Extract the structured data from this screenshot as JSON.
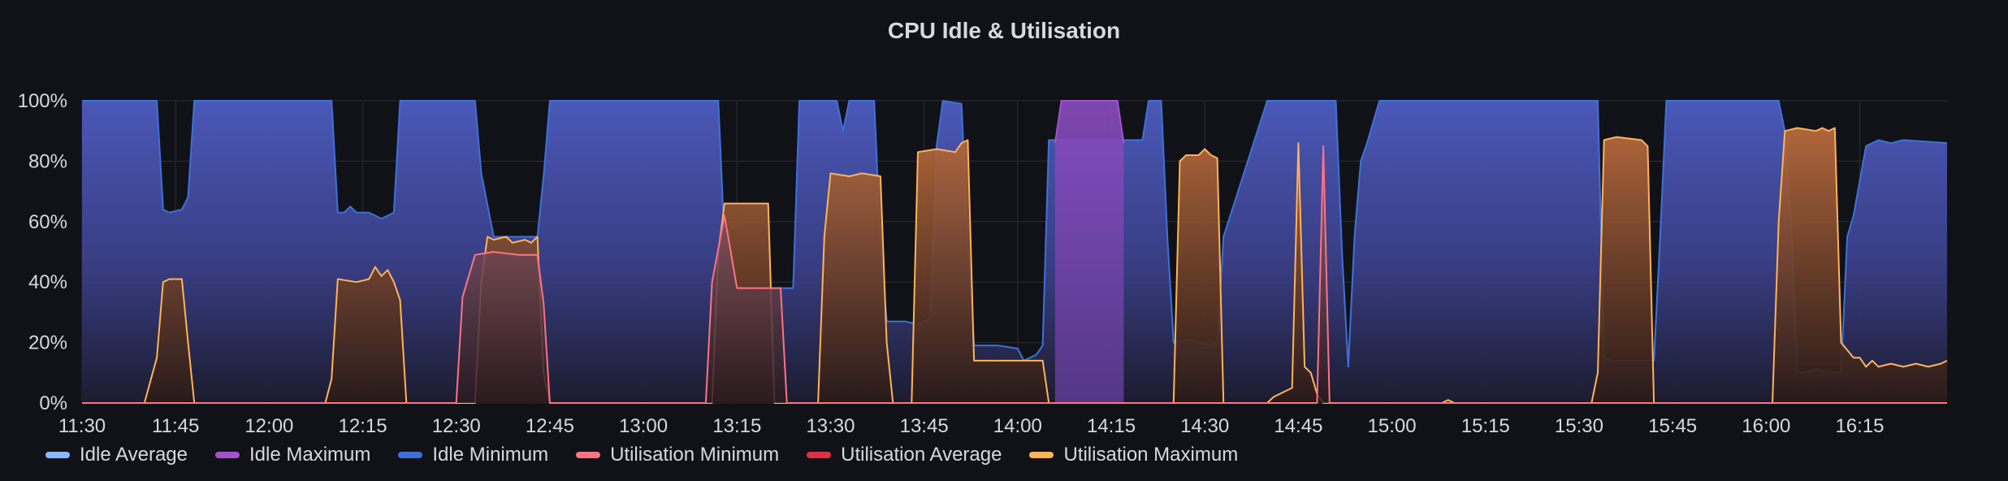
{
  "title": "CPU Idle & Utilisation",
  "chart_data": {
    "type": "area",
    "title": "CPU Idle & Utilisation",
    "ylim": [
      0,
      100
    ],
    "xlim_minutes": [
      690,
      989
    ],
    "y_ticks": [
      "0%",
      "20%",
      "40%",
      "60%",
      "80%",
      "100%"
    ],
    "y_tick_values": [
      0,
      20,
      40,
      60,
      80,
      100
    ],
    "x_ticks": [
      "11:30",
      "11:45",
      "12:00",
      "12:15",
      "12:30",
      "12:45",
      "13:00",
      "13:15",
      "13:30",
      "13:45",
      "14:00",
      "14:15",
      "14:30",
      "14:45",
      "15:00",
      "15:15",
      "15:30",
      "15:45",
      "16:00",
      "16:15"
    ],
    "x_tick_minutes": [
      690,
      705,
      720,
      735,
      750,
      765,
      780,
      795,
      810,
      825,
      840,
      855,
      870,
      885,
      900,
      915,
      930,
      945,
      960,
      975
    ],
    "grid": true,
    "legend_position": "bottom-left",
    "series": [
      {
        "name": "Idle Average",
        "color": "#8ab8ff",
        "points": []
      },
      {
        "name": "Idle Maximum",
        "color": "#a352cc",
        "points": [
          [
            846,
            86
          ],
          [
            847,
            100
          ],
          [
            856,
            100
          ],
          [
            857,
            86
          ]
        ]
      },
      {
        "name": "Idle Minimum",
        "color": "#3d71d9",
        "points": [
          [
            690,
            100
          ],
          [
            702,
            100
          ],
          [
            703,
            64
          ],
          [
            704,
            63
          ],
          [
            706,
            64
          ],
          [
            707,
            68
          ],
          [
            708,
            100
          ],
          [
            710,
            100
          ],
          [
            723,
            100
          ],
          [
            730,
            100
          ],
          [
            731,
            63
          ],
          [
            732,
            63
          ],
          [
            733,
            65
          ],
          [
            734,
            63
          ],
          [
            736,
            63
          ],
          [
            737,
            62
          ],
          [
            738,
            61
          ],
          [
            740,
            63
          ],
          [
            741,
            100
          ],
          [
            753,
            100
          ],
          [
            754,
            76
          ],
          [
            756,
            55
          ],
          [
            763,
            55
          ],
          [
            764,
            75
          ],
          [
            765,
            100
          ],
          [
            783,
            100
          ],
          [
            792,
            100
          ],
          [
            793,
            53
          ],
          [
            794,
            40
          ],
          [
            796,
            38
          ],
          [
            800,
            38
          ],
          [
            801,
            38
          ],
          [
            804,
            38
          ],
          [
            805,
            100
          ],
          [
            811,
            100
          ],
          [
            812,
            90
          ],
          [
            813,
            100
          ],
          [
            817,
            100
          ],
          [
            818,
            53
          ],
          [
            819,
            27
          ],
          [
            822,
            27
          ],
          [
            824,
            26
          ],
          [
            826,
            28
          ],
          [
            827,
            85
          ],
          [
            828,
            100
          ],
          [
            831,
            99
          ],
          [
            832,
            53
          ],
          [
            833,
            19
          ],
          [
            837,
            19
          ],
          [
            840,
            18
          ],
          [
            841,
            14
          ],
          [
            843,
            16
          ],
          [
            844,
            19
          ],
          [
            845,
            87
          ],
          [
            860,
            87
          ],
          [
            861,
            100
          ],
          [
            863,
            100
          ],
          [
            864,
            55
          ],
          [
            865,
            20
          ],
          [
            867,
            21
          ],
          [
            869,
            20
          ],
          [
            871,
            19
          ],
          [
            872,
            20
          ],
          [
            873,
            55
          ],
          [
            880,
            100
          ],
          [
            891,
            100
          ],
          [
            892,
            50
          ],
          [
            893,
            12
          ],
          [
            894,
            55
          ],
          [
            895,
            80
          ],
          [
            896,
            86
          ],
          [
            898,
            100
          ],
          [
            918,
            100
          ],
          [
            933,
            100
          ],
          [
            934,
            15
          ],
          [
            935,
            14
          ],
          [
            942,
            14
          ],
          [
            943,
            55
          ],
          [
            944,
            100
          ],
          [
            962,
            100
          ],
          [
            963,
            90
          ],
          [
            964,
            60
          ],
          [
            965,
            10
          ],
          [
            966,
            10
          ],
          [
            968,
            11
          ],
          [
            971,
            10
          ],
          [
            972,
            10
          ],
          [
            973,
            55
          ],
          [
            974,
            62
          ],
          [
            976,
            85
          ],
          [
            978,
            87
          ],
          [
            980,
            86
          ],
          [
            982,
            87
          ],
          [
            989,
            86
          ]
        ]
      },
      {
        "name": "Utilisation Minimum",
        "color": "#ff7383",
        "points": [
          [
            690,
            0
          ],
          [
            750,
            0
          ],
          [
            751,
            35
          ],
          [
            753,
            49
          ],
          [
            756,
            50
          ],
          [
            760,
            49
          ],
          [
            763,
            49
          ],
          [
            764,
            33
          ],
          [
            765,
            0
          ],
          [
            790,
            0
          ],
          [
            791,
            40
          ],
          [
            793,
            62
          ],
          [
            795,
            38
          ],
          [
            802,
            38
          ],
          [
            803,
            0
          ],
          [
            888,
            0
          ],
          [
            889,
            85
          ],
          [
            890,
            0
          ],
          [
            989,
            0
          ]
        ]
      },
      {
        "name": "Utilisation Average",
        "color": "#e02f44",
        "points": []
      },
      {
        "name": "Utilisation Maximum",
        "color": "#ffb357",
        "points": [
          [
            690,
            0
          ],
          [
            700,
            0
          ],
          [
            702,
            15
          ],
          [
            703,
            40
          ],
          [
            704,
            41
          ],
          [
            706,
            41
          ],
          [
            707,
            20
          ],
          [
            708,
            0
          ],
          [
            716,
            0
          ],
          [
            729,
            0
          ],
          [
            730,
            8
          ],
          [
            731,
            41
          ],
          [
            734,
            40
          ],
          [
            736,
            41
          ],
          [
            737,
            45
          ],
          [
            738,
            42
          ],
          [
            739,
            44
          ],
          [
            740,
            40
          ],
          [
            741,
            34
          ],
          [
            742,
            0
          ],
          [
            753,
            0
          ],
          [
            754,
            40
          ],
          [
            755,
            55
          ],
          [
            756,
            54
          ],
          [
            758,
            55
          ],
          [
            759,
            53
          ],
          [
            761,
            54
          ],
          [
            762,
            53
          ],
          [
            763,
            55
          ],
          [
            764,
            10
          ],
          [
            765,
            0
          ],
          [
            791,
            0
          ],
          [
            792,
            50
          ],
          [
            793,
            66
          ],
          [
            795,
            66
          ],
          [
            798,
            66
          ],
          [
            800,
            66
          ],
          [
            801,
            0
          ],
          [
            804,
            0
          ],
          [
            808,
            0
          ],
          [
            809,
            55
          ],
          [
            810,
            76
          ],
          [
            813,
            75
          ],
          [
            815,
            76
          ],
          [
            818,
            75
          ],
          [
            819,
            20
          ],
          [
            820,
            0
          ],
          [
            822,
            0
          ],
          [
            823,
            0
          ],
          [
            824,
            83
          ],
          [
            827,
            84
          ],
          [
            830,
            83
          ],
          [
            831,
            86
          ],
          [
            832,
            87
          ],
          [
            833,
            14
          ],
          [
            844,
            14
          ],
          [
            845,
            0
          ],
          [
            865,
            0
          ],
          [
            866,
            80
          ],
          [
            867,
            82
          ],
          [
            869,
            82
          ],
          [
            870,
            84
          ],
          [
            871,
            82
          ],
          [
            872,
            81
          ],
          [
            873,
            0
          ],
          [
            880,
            0
          ],
          [
            881,
            2
          ],
          [
            884,
            5
          ],
          [
            885,
            86
          ],
          [
            886,
            12
          ],
          [
            887,
            10
          ],
          [
            888,
            3
          ],
          [
            889,
            0
          ],
          [
            908,
            0
          ],
          [
            909,
            1
          ],
          [
            910,
            0
          ],
          [
            932,
            0
          ],
          [
            933,
            10
          ],
          [
            934,
            87
          ],
          [
            936,
            88
          ],
          [
            940,
            87
          ],
          [
            941,
            85
          ],
          [
            942,
            0
          ],
          [
            956,
            0
          ],
          [
            961,
            0
          ],
          [
            962,
            60
          ],
          [
            963,
            90
          ],
          [
            965,
            91
          ],
          [
            968,
            90
          ],
          [
            969,
            91
          ],
          [
            970,
            90
          ],
          [
            971,
            91
          ],
          [
            972,
            20
          ],
          [
            974,
            15
          ],
          [
            975,
            15
          ],
          [
            976,
            12
          ],
          [
            977,
            14
          ],
          [
            978,
            12
          ],
          [
            980,
            13
          ],
          [
            982,
            12
          ],
          [
            984,
            13
          ],
          [
            986,
            12
          ],
          [
            988,
            13
          ],
          [
            989,
            14
          ]
        ]
      }
    ]
  },
  "legend": [
    {
      "label": "Idle Average",
      "color": "#8ab8ff"
    },
    {
      "label": "Idle Maximum",
      "color": "#a352cc"
    },
    {
      "label": "Idle Minimum",
      "color": "#3d71d9"
    },
    {
      "label": "Utilisation Minimum",
      "color": "#ff7383"
    },
    {
      "label": "Utilisation Average",
      "color": "#e02f44"
    },
    {
      "label": "Utilisation Maximum",
      "color": "#ffb357"
    }
  ]
}
